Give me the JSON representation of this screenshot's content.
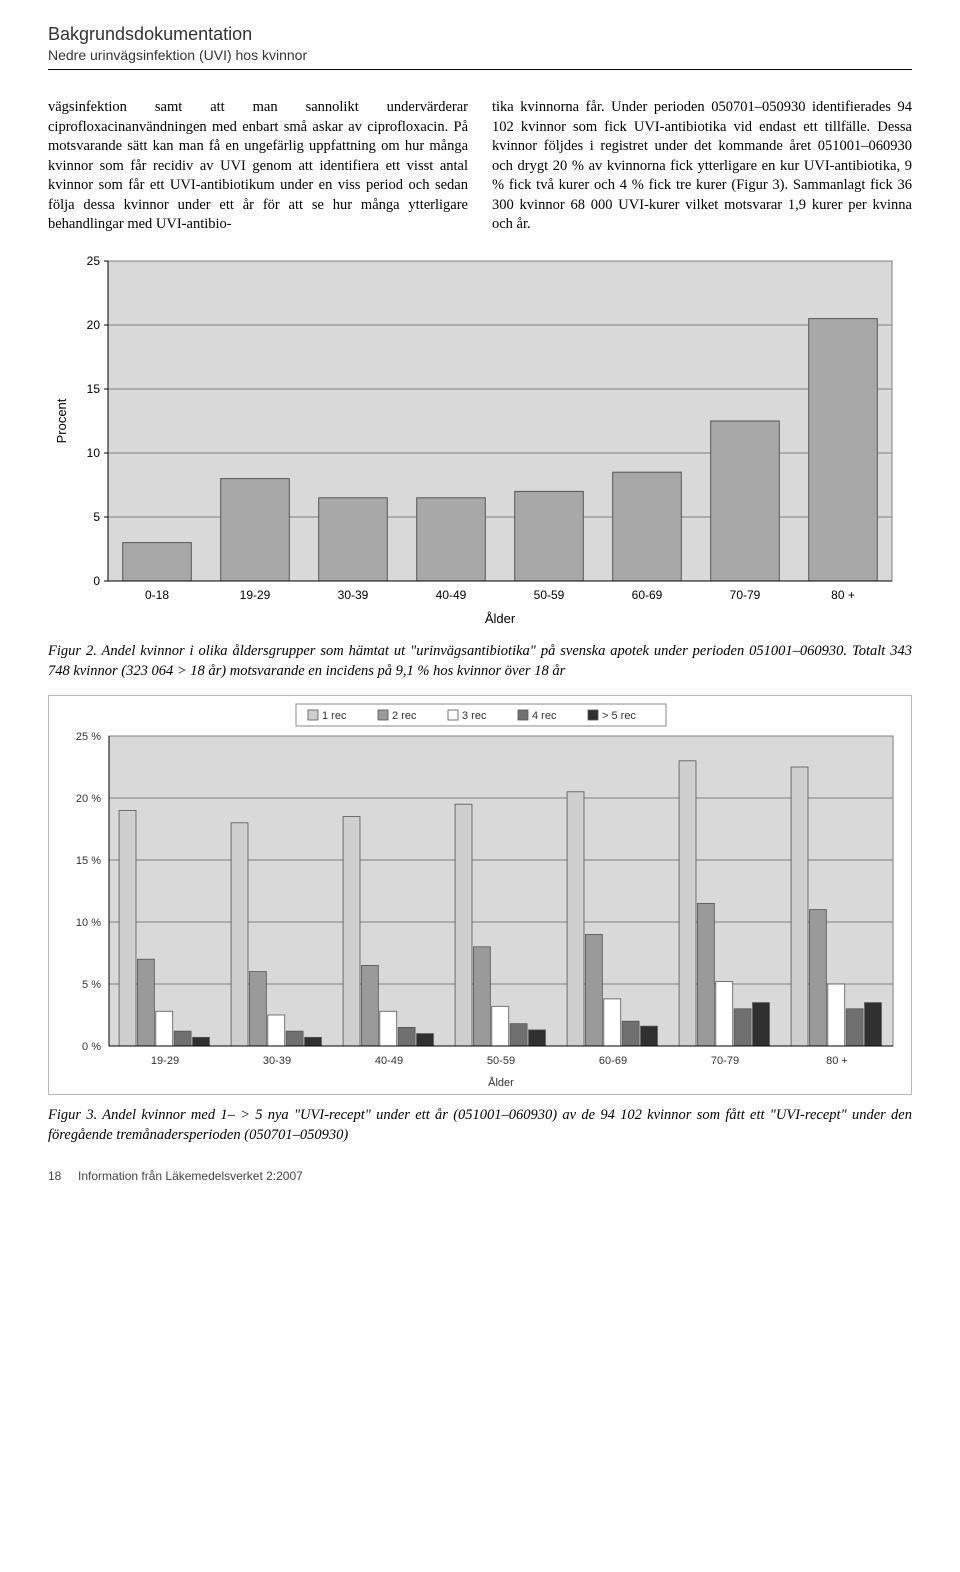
{
  "header": {
    "title": "Bakgrundsdokumentation",
    "subtitle": "Nedre urinvägsinfektion (UVI) hos kvinnor"
  },
  "body_text": {
    "col_left": "vägsinfektion samt att man sannolikt undervärderar ciprofloxacinanvändningen med enbart små askar av ciprofloxacin.\n\nPå motsvarande sätt kan man få en ungefärlig uppfattning om hur många kvinnor som får recidiv av UVI genom att identifiera ett visst antal kvinnor som får ett UVI-antibiotikum under en viss period och sedan följa dessa kvinnor under ett år för att se hur många ytterligare behandlingar med UVI-antibio-",
    "col_right": "tika kvinnorna får. Under perioden 050701–050930 identifierades 94 102 kvinnor som fick UVI-antibiotika vid endast ett tillfälle. Dessa kvinnor följdes i registret under det kommande året 051001–060930 och drygt 20 % av kvinnorna fick ytterligare en kur UVI-antibiotika, 9 % fick två kurer och 4 % fick tre kurer (Figur 3). Sammanlagt fick 36 300 kvinnor 68 000 UVI-kurer vilket motsvarar 1,9 kurer per kvinna och år."
  },
  "figure2": {
    "type": "bar",
    "y_label": "Procent",
    "x_label": "Ålder",
    "categories": [
      "0-18",
      "19-29",
      "30-39",
      "40-49",
      "50-59",
      "60-69",
      "70-79",
      "80 +"
    ],
    "values": [
      3,
      8,
      6.5,
      6.5,
      7,
      8.5,
      12.5,
      20.5
    ],
    "ylim": [
      0,
      25
    ],
    "ytick_step": 5,
    "bar_color": "#a8a8a8",
    "bar_stroke": "#555555",
    "background_color": "#d9d9d9",
    "plot_bg": "#d9d9d9",
    "grid_color": "#808080",
    "axis_fontsize": 12,
    "label_fontsize": 13
  },
  "caption2": "Figur 2. Andel kvinnor i olika åldersgrupper som hämtat ut \"urinvägsantibiotika\" på svenska apotek under perioden 051001–060930. Totalt 343 748 kvinnor (323 064 > 18 år) motsvarande en incidens på 9,1 % hos kvinnor över 18 år",
  "figure3": {
    "type": "grouped-bar",
    "y_label": "",
    "x_label": "Ålder",
    "categories": [
      "19-29",
      "30-39",
      "40-49",
      "50-59",
      "60-69",
      "70-79",
      "80 +"
    ],
    "series": [
      {
        "name": "1 rec",
        "color": "#cfcfcf",
        "values": [
          19,
          18,
          18.5,
          19.5,
          20.5,
          23,
          22.5
        ]
      },
      {
        "name": "2 rec",
        "color": "#9a9a9a",
        "values": [
          7,
          6,
          6.5,
          8,
          9,
          11.5,
          11
        ]
      },
      {
        "name": "3 rec",
        "color": "#ffffff",
        "values": [
          2.8,
          2.5,
          2.8,
          3.2,
          3.8,
          5.2,
          5
        ]
      },
      {
        "name": "4 rec",
        "color": "#707070",
        "values": [
          1.2,
          1.2,
          1.5,
          1.8,
          2,
          3,
          3
        ]
      },
      {
        "name": "> 5 rec",
        "color": "#303030",
        "values": [
          0.7,
          0.7,
          1,
          1.3,
          1.6,
          3.5,
          3.5
        ]
      }
    ],
    "ylim": [
      0,
      25
    ],
    "ytick_step": 5,
    "ytick_suffix": " %",
    "plot_bg": "#d9d9d9",
    "grid_color": "#808080",
    "bar_stroke": "#555555",
    "legend_bg": "#ffffff",
    "legend_border": "#888888"
  },
  "caption3": "Figur 3. Andel kvinnor med 1– > 5 nya \"UVI-recept\" under ett år (051001–060930) av de 94 102 kvinnor som fått ett \"UVI-recept\" under den föregående tremånadersperioden (050701–050930)",
  "footer": {
    "page": "18",
    "source": "Information från Läkemedelsverket 2:2007"
  }
}
